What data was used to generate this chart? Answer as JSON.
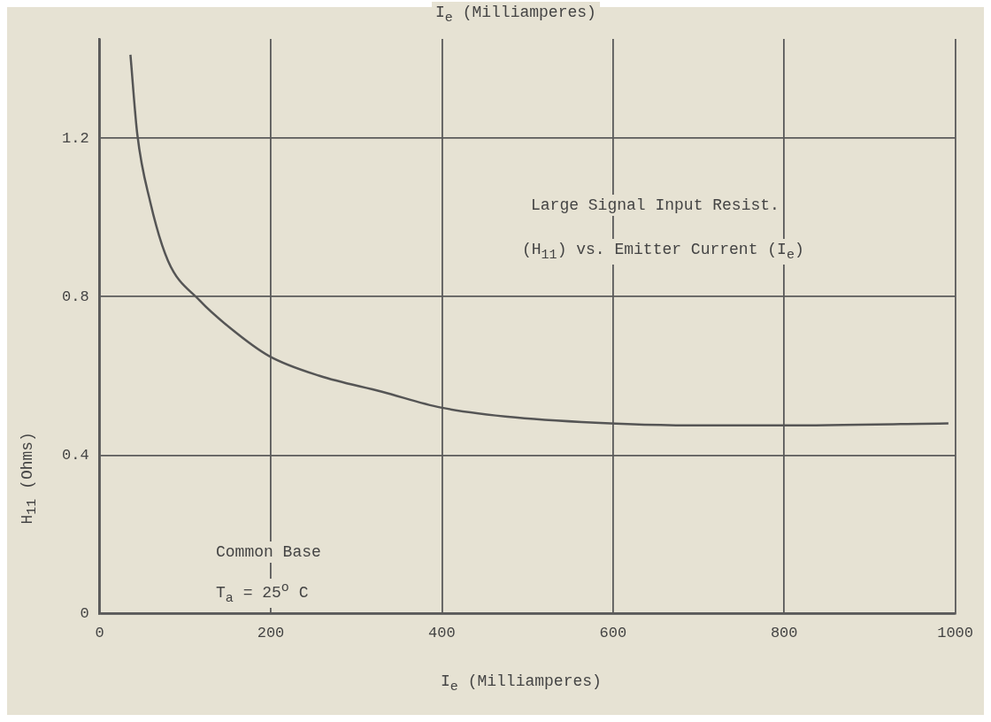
{
  "chart_data": {
    "type": "line",
    "xlabel": "I$_{e}$ (Milliamperes)",
    "ylabel": "H$_{11}$ (Ohms)",
    "annotations": [
      "I$_{e}$ (Milliamperes)",
      "Large Signal Input Resist.",
      "(H$_{11}$) vs. Emitter Current (I$_{e}$)",
      "Common Base",
      "T$_{a}$ = 25$^{o}$ C"
    ],
    "series": [
      {
        "color": "#555555",
        "x": [
          36,
          44,
          59,
          80,
          117,
          153,
          198,
          257,
          330,
          399,
          486,
          597,
          695,
          799,
          992
        ],
        "values": [
          1.41,
          1.21,
          1.04,
          0.89,
          0.79,
          0.72,
          0.65,
          0.6,
          0.56,
          0.52,
          0.495,
          0.48,
          0.475,
          0.475,
          0.48
        ]
      }
    ],
    "xlim": [
      0,
      1000
    ],
    "xticks": [
      0,
      200,
      400,
      600,
      800,
      1000
    ],
    "ylim": [
      0,
      1.45
    ],
    "yticks": [
      0,
      0.4,
      0.8,
      1.2
    ],
    "grid": true,
    "legend": false,
    "marker": "none",
    "line_style": "solid"
  }
}
